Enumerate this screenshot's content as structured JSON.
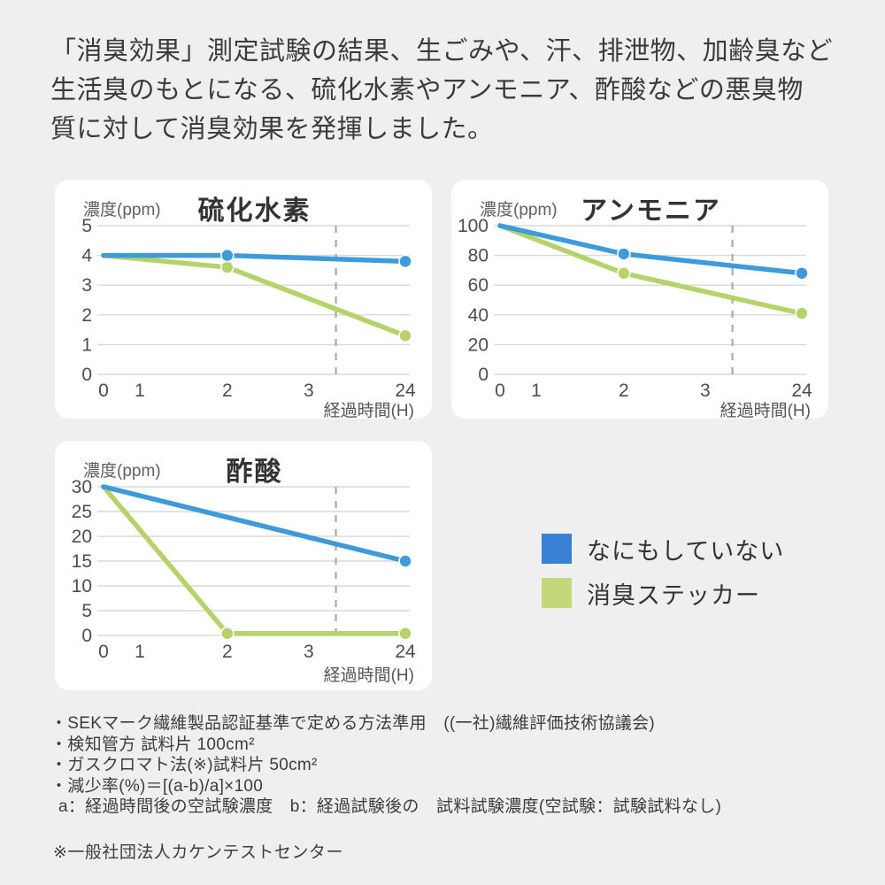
{
  "page": {
    "background": "#efefef",
    "card_background": "#ffffff"
  },
  "heading": {
    "lines": [
      "「消臭効果」測定試験の結果、生ごみや、汗、排泄物、加齢臭など",
      "生活臭のもとになる、硫化水素やアンモニア、酢酸などの悪臭物",
      "質に対して消臭効果を発揮しました。"
    ]
  },
  "colors": {
    "grid": "#D9D9D9",
    "dashed_guide": "#AAAAAA",
    "tick_text": "#4D4D4D",
    "line_blue": "#3E9AD9",
    "line_green": "#B5D36A"
  },
  "chart_data": [
    {
      "type": "line",
      "title": "硫化水素",
      "ylabel": "濃度(ppm)",
      "xlabel": "経過時間(H)",
      "ylim": [
        0,
        5
      ],
      "y_ticks": [
        0,
        1,
        2,
        3,
        4,
        5
      ],
      "x_tick_labels": [
        "0",
        "1",
        "2",
        "3",
        "24"
      ],
      "x_tick_positions": [
        0,
        0.12,
        0.41,
        0.68,
        1
      ],
      "dashed_guide_x": 0.77,
      "grid": true,
      "series": [
        {
          "name": "なにもしていない",
          "color": "#3E9AD9",
          "points": [
            {
              "x": "0",
              "y": 4.0
            },
            {
              "x": "2",
              "y": 4.0,
              "marker": true
            },
            {
              "x": "24",
              "y": 3.8,
              "marker": true
            }
          ]
        },
        {
          "name": "消臭ステッカー",
          "color": "#B5D36A",
          "points": [
            {
              "x": "0",
              "y": 4.0
            },
            {
              "x": "2",
              "y": 3.6,
              "marker": true
            },
            {
              "x": "24",
              "y": 1.3,
              "marker": true
            }
          ]
        }
      ]
    },
    {
      "type": "line",
      "title": "アンモニア",
      "ylabel": "濃度(ppm)",
      "xlabel": "経過時間(H)",
      "ylim": [
        0,
        100
      ],
      "y_ticks": [
        0,
        20,
        40,
        60,
        80,
        100
      ],
      "x_tick_labels": [
        "0",
        "1",
        "2",
        "3",
        "24"
      ],
      "x_tick_positions": [
        0,
        0.12,
        0.41,
        0.68,
        1
      ],
      "dashed_guide_x": 0.77,
      "grid": true,
      "series": [
        {
          "name": "なにもしていない",
          "color": "#3E9AD9",
          "points": [
            {
              "x": "0",
              "y": 100
            },
            {
              "x": "2",
              "y": 81,
              "marker": true
            },
            {
              "x": "24",
              "y": 68,
              "marker": true
            }
          ]
        },
        {
          "name": "消臭ステッカー",
          "color": "#B5D36A",
          "points": [
            {
              "x": "0",
              "y": 100
            },
            {
              "x": "2",
              "y": 68,
              "marker": true
            },
            {
              "x": "24",
              "y": 41,
              "marker": true
            }
          ]
        }
      ]
    },
    {
      "type": "line",
      "title": "酢酸",
      "ylabel": "濃度(ppm)",
      "xlabel": "経過時間(H)",
      "ylim": [
        0,
        30
      ],
      "y_ticks": [
        0,
        5,
        10,
        15,
        20,
        25,
        30
      ],
      "x_tick_labels": [
        "0",
        "1",
        "2",
        "3",
        "24"
      ],
      "x_tick_positions": [
        0,
        0.12,
        0.41,
        0.68,
        1
      ],
      "dashed_guide_x": 0.77,
      "grid": true,
      "series": [
        {
          "name": "なにもしていない",
          "color": "#3E9AD9",
          "points": [
            {
              "x": "0",
              "y": 30
            },
            {
              "x": "24",
              "y": 15,
              "marker": true
            }
          ]
        },
        {
          "name": "消臭ステッカー",
          "color": "#B5D36A",
          "points": [
            {
              "x": "0",
              "y": 30
            },
            {
              "x": "2",
              "y": 0.4,
              "marker": true
            },
            {
              "x": "24",
              "y": 0.4,
              "marker": true
            }
          ]
        }
      ]
    }
  ],
  "legend": {
    "position": "right-of-third-chart",
    "items": [
      {
        "label": "なにもしていない",
        "color": "#3A80D4"
      },
      {
        "label": "消臭ステッカー",
        "color": "#C3D87B"
      }
    ]
  },
  "notes": {
    "lines": [
      "・SEKマーク繊維製品認証基準で定める方法準用　((一社)繊維評価技術協議会)",
      "・検知管方 試料片 100cm²",
      "・ガスクロマト法(※)試料片 50cm²",
      "・減少率(%)＝[(a-b)/a]×100",
      "a：経過時間後の空試験濃度　b：経過試験後の　試料試験濃度(空試験：試験試料なし)"
    ],
    "source": "※一般社団法人カケンテストセンター"
  }
}
